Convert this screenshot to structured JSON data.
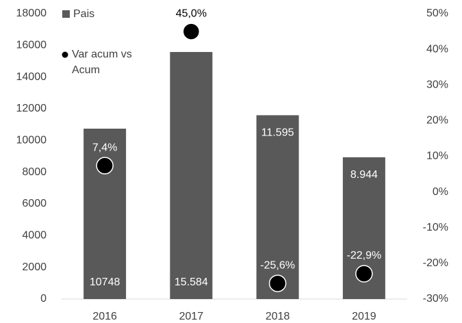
{
  "chart_data": {
    "type": "bar",
    "categories": [
      "2016",
      "2017",
      "2018",
      "2019"
    ],
    "series": [
      {
        "name": "Pais",
        "type": "bar",
        "color": "#595959",
        "values": [
          10748,
          15584,
          11595,
          8944
        ],
        "value_labels": [
          "10748",
          "15.584",
          "11.595",
          "8.944"
        ]
      },
      {
        "name": "Var acum vs Acum",
        "type": "scatter",
        "axis": "y2",
        "color": "#000000",
        "values": [
          7.4,
          45.0,
          -25.6,
          -22.9
        ],
        "value_labels": [
          "7,4%",
          "45,0%",
          "-25,6%",
          "-22,9%"
        ]
      }
    ],
    "ylim": [
      0,
      18000
    ],
    "yticks": [
      0,
      2000,
      4000,
      6000,
      8000,
      10000,
      12000,
      14000,
      16000,
      18000
    ],
    "y2lim": [
      -30,
      50
    ],
    "y2ticks": [
      {
        "value": -30,
        "label": "-30%"
      },
      {
        "value": -20,
        "label": "-20%"
      },
      {
        "value": -10,
        "label": "-10%"
      },
      {
        "value": 0,
        "label": "0%"
      },
      {
        "value": 10,
        "label": "10%"
      },
      {
        "value": 20,
        "label": "20%"
      },
      {
        "value": 30,
        "label": "30%"
      },
      {
        "value": 40,
        "label": "40%"
      },
      {
        "value": 50,
        "label": "50%"
      }
    ],
    "grid": false,
    "legend": "top-left"
  }
}
